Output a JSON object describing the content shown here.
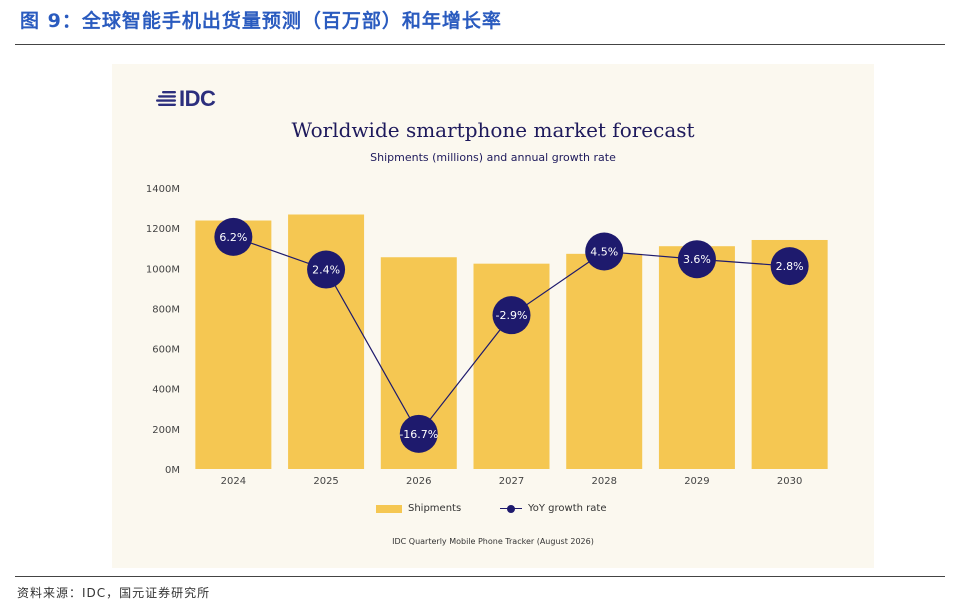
{
  "figure_title": "图 9：全球智能手机出货量预测（百万部）和年增长率",
  "source_text": "资料来源：IDC，国元证券研究所",
  "logo_text": "IDC",
  "icons": [
    "idc-logo-mark-icon"
  ],
  "colors": {
    "bars": "#f5c752",
    "line": "#1e1a6d",
    "title_blue": "#2a5bbf",
    "panel_bg": "#fbf8ef"
  },
  "chart_data": {
    "type": "bar",
    "title": "Worldwide smartphone market forecast",
    "subtitle": "Shipments (millions) and annual growth rate",
    "categories": [
      "2024",
      "2025",
      "2026",
      "2027",
      "2028",
      "2029",
      "2030"
    ],
    "series": [
      {
        "name": "Shipments",
        "type": "bar",
        "values": [
          1238,
          1268,
          1055,
          1023,
          1072,
          1110,
          1141
        ]
      },
      {
        "name": "YoY growth rate",
        "type": "line",
        "values": [
          6.2,
          2.4,
          -16.7,
          -2.9,
          4.5,
          3.6,
          2.8
        ],
        "labels": [
          "6.2%",
          "2.4%",
          "-16.7%",
          "-2.9%",
          "4.5%",
          "3.6%",
          "2.8%"
        ]
      }
    ],
    "y_ticks": [
      "0M",
      "200M",
      "400M",
      "600M",
      "800M",
      "1000M",
      "1200M",
      "1400M"
    ],
    "ylim": [
      0,
      1400
    ],
    "grid": false,
    "legend_position": "bottom",
    "footnote": "IDC Quarterly Mobile Phone Tracker (August 2026)"
  }
}
